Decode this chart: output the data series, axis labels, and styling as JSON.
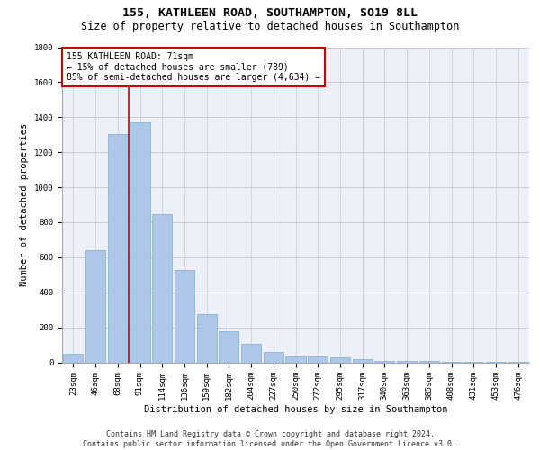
{
  "title": "155, KATHLEEN ROAD, SOUTHAMPTON, SO19 8LL",
  "subtitle": "Size of property relative to detached houses in Southampton",
  "xlabel": "Distribution of detached houses by size in Southampton",
  "ylabel": "Number of detached properties",
  "categories": [
    "23sqm",
    "46sqm",
    "68sqm",
    "91sqm",
    "114sqm",
    "136sqm",
    "159sqm",
    "182sqm",
    "204sqm",
    "227sqm",
    "250sqm",
    "272sqm",
    "295sqm",
    "317sqm",
    "340sqm",
    "363sqm",
    "385sqm",
    "408sqm",
    "431sqm",
    "453sqm",
    "476sqm"
  ],
  "values": [
    50,
    640,
    1305,
    1370,
    845,
    525,
    275,
    175,
    105,
    60,
    35,
    35,
    28,
    20,
    10,
    10,
    10,
    5,
    5,
    5,
    5
  ],
  "bar_color": "#aec6e8",
  "bar_edge_color": "#7aafd4",
  "vline_color": "#cc0000",
  "vline_x_index": 2.5,
  "annotation_line1": "155 KATHLEEN ROAD: 71sqm",
  "annotation_line2": "← 15% of detached houses are smaller (789)",
  "annotation_line3": "85% of semi-detached houses are larger (4,634) →",
  "annotation_box_color": "#cc0000",
  "annotation_box_facecolor": "white",
  "ylim": [
    0,
    1800
  ],
  "yticks": [
    0,
    200,
    400,
    600,
    800,
    1000,
    1200,
    1400,
    1600,
    1800
  ],
  "grid_color": "#c8c8d8",
  "background_color": "#eef0f8",
  "footer_line1": "Contains HM Land Registry data © Crown copyright and database right 2024.",
  "footer_line2": "Contains public sector information licensed under the Open Government Licence v3.0.",
  "title_fontsize": 9.5,
  "subtitle_fontsize": 8.5,
  "xlabel_fontsize": 7.5,
  "ylabel_fontsize": 7.5,
  "tick_fontsize": 6.5,
  "annotation_fontsize": 7,
  "footer_fontsize": 6
}
